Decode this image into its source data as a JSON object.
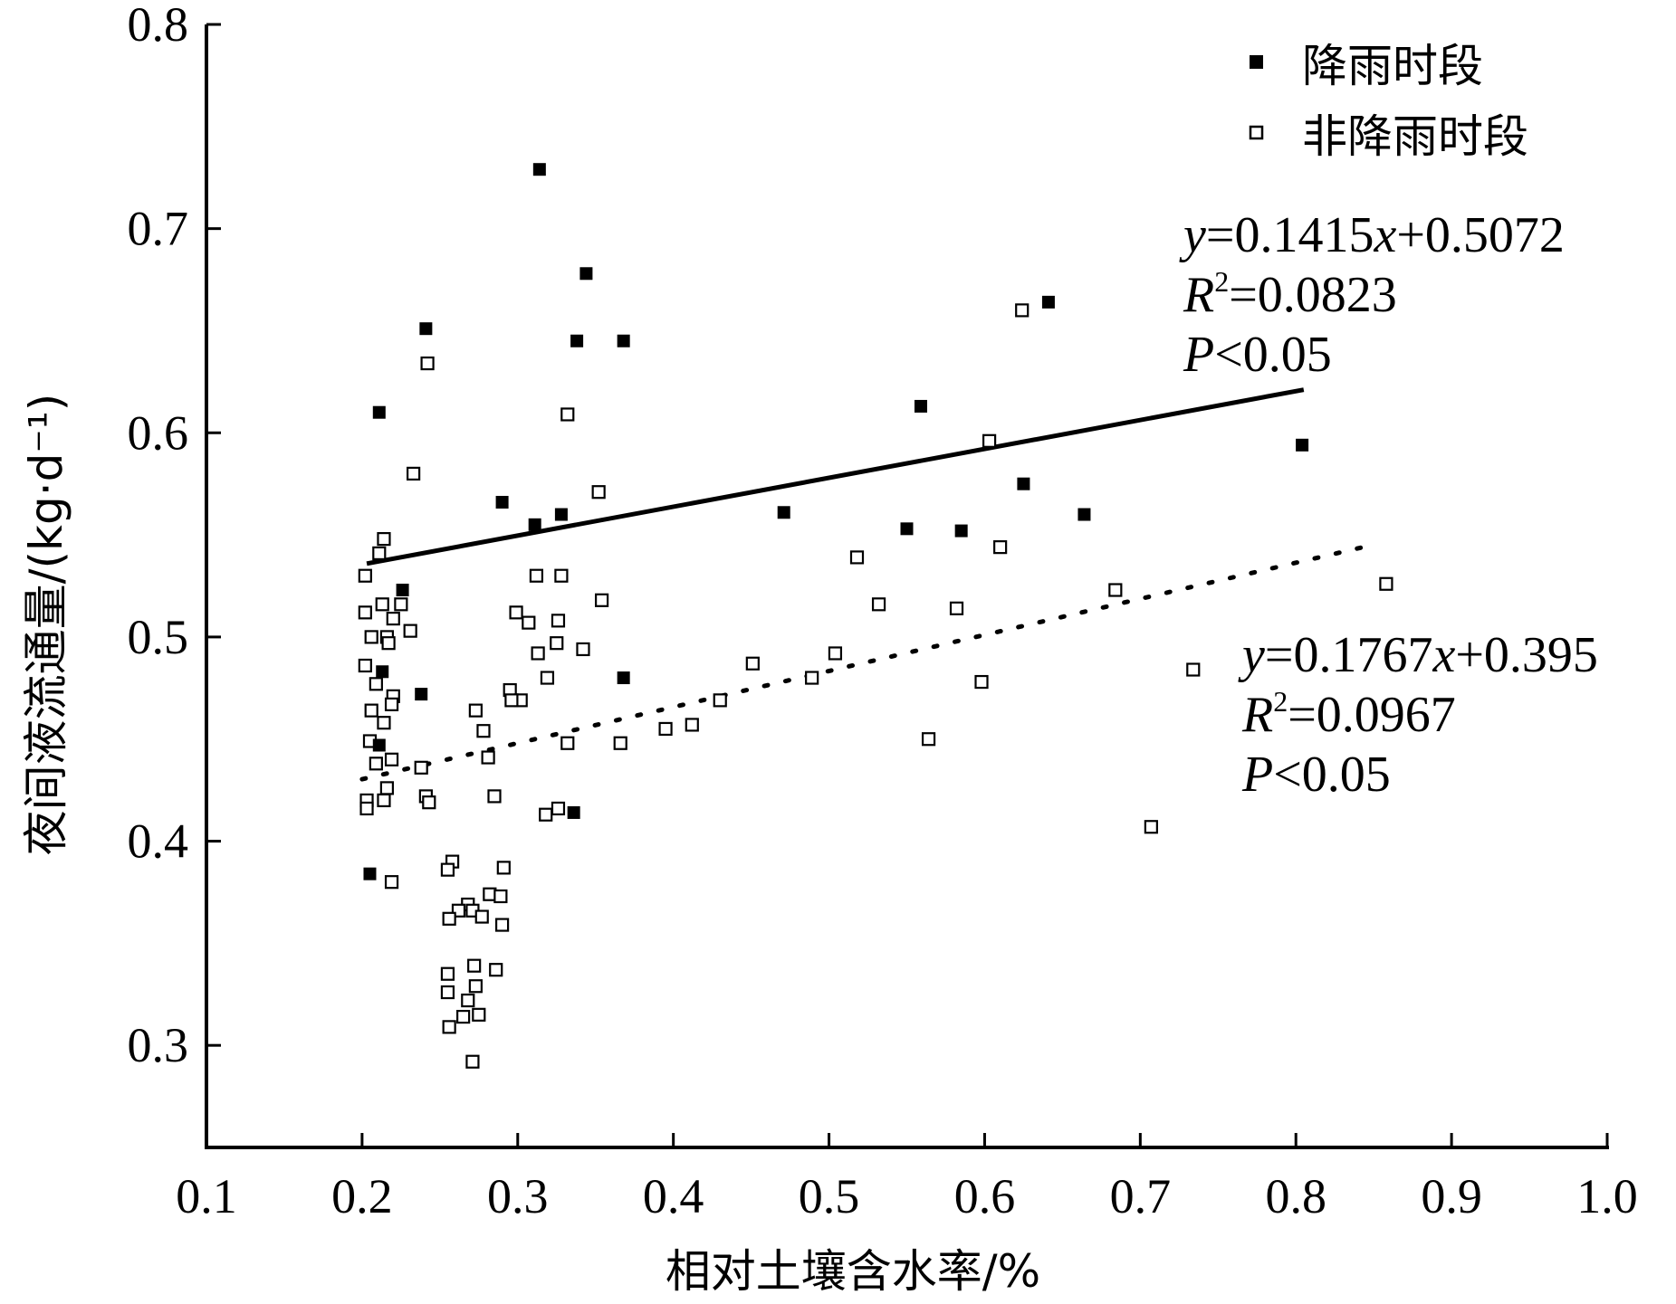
{
  "chart_data": {
    "type": "scatter",
    "xlabel": "相对土壤含水率/%",
    "ylabel": "夜间液流通量/(kg·d⁻¹)",
    "xlim": [
      0.1,
      1.0
    ],
    "ylim": [
      0.25,
      0.8
    ],
    "xticks": [
      "0.1",
      "0.2",
      "0.3",
      "0.4",
      "0.5",
      "0.6",
      "0.7",
      "0.8",
      "0.9",
      "1.0"
    ],
    "yticks": [
      "0.3",
      "0.4",
      "0.5",
      "0.6",
      "0.7",
      "0.8"
    ],
    "legend_position": "top-right",
    "series": [
      {
        "name": "降雨时段",
        "marker": "filled-square",
        "color": "#000000",
        "points": [
          [
            0.314,
            0.729
          ],
          [
            0.344,
            0.678
          ],
          [
            0.241,
            0.651
          ],
          [
            0.338,
            0.645
          ],
          [
            0.368,
            0.645
          ],
          [
            0.211,
            0.61
          ],
          [
            0.641,
            0.664
          ],
          [
            0.559,
            0.613
          ],
          [
            0.804,
            0.594
          ],
          [
            0.625,
            0.575
          ],
          [
            0.29,
            0.566
          ],
          [
            0.471,
            0.561
          ],
          [
            0.664,
            0.56
          ],
          [
            0.328,
            0.56
          ],
          [
            0.311,
            0.555
          ],
          [
            0.55,
            0.553
          ],
          [
            0.585,
            0.552
          ],
          [
            0.226,
            0.523
          ],
          [
            0.213,
            0.483
          ],
          [
            0.238,
            0.472
          ],
          [
            0.368,
            0.48
          ],
          [
            0.211,
            0.447
          ],
          [
            0.336,
            0.414
          ],
          [
            0.205,
            0.384
          ]
        ]
      },
      {
        "name": "非降雨时段",
        "marker": "open-square",
        "color": "#000000",
        "points": [
          [
            0.624,
            0.66
          ],
          [
            0.242,
            0.634
          ],
          [
            0.332,
            0.609
          ],
          [
            0.603,
            0.596
          ],
          [
            0.233,
            0.58
          ],
          [
            0.352,
            0.571
          ],
          [
            0.214,
            0.548
          ],
          [
            0.211,
            0.541
          ],
          [
            0.61,
            0.544
          ],
          [
            0.518,
            0.539
          ],
          [
            0.202,
            0.53
          ],
          [
            0.312,
            0.53
          ],
          [
            0.328,
            0.53
          ],
          [
            0.684,
            0.523
          ],
          [
            0.858,
            0.526
          ],
          [
            0.354,
            0.518
          ],
          [
            0.532,
            0.516
          ],
          [
            0.213,
            0.516
          ],
          [
            0.225,
            0.516
          ],
          [
            0.202,
            0.512
          ],
          [
            0.22,
            0.509
          ],
          [
            0.299,
            0.512
          ],
          [
            0.582,
            0.514
          ],
          [
            0.307,
            0.507
          ],
          [
            0.326,
            0.508
          ],
          [
            0.231,
            0.503
          ],
          [
            0.206,
            0.5
          ],
          [
            0.216,
            0.5
          ],
          [
            0.217,
            0.497
          ],
          [
            0.325,
            0.497
          ],
          [
            0.342,
            0.494
          ],
          [
            0.313,
            0.492
          ],
          [
            0.504,
            0.492
          ],
          [
            0.202,
            0.486
          ],
          [
            0.451,
            0.487
          ],
          [
            0.734,
            0.484
          ],
          [
            0.319,
            0.48
          ],
          [
            0.489,
            0.48
          ],
          [
            0.209,
            0.477
          ],
          [
            0.598,
            0.478
          ],
          [
            0.22,
            0.471
          ],
          [
            0.295,
            0.474
          ],
          [
            0.302,
            0.469
          ],
          [
            0.296,
            0.469
          ],
          [
            0.219,
            0.467
          ],
          [
            0.43,
            0.469
          ],
          [
            0.206,
            0.464
          ],
          [
            0.273,
            0.464
          ],
          [
            0.214,
            0.458
          ],
          [
            0.412,
            0.457
          ],
          [
            0.278,
            0.454
          ],
          [
            0.395,
            0.455
          ],
          [
            0.205,
            0.449
          ],
          [
            0.564,
            0.45
          ],
          [
            0.332,
            0.448
          ],
          [
            0.366,
            0.448
          ],
          [
            0.281,
            0.441
          ],
          [
            0.219,
            0.44
          ],
          [
            0.209,
            0.438
          ],
          [
            0.238,
            0.436
          ],
          [
            0.216,
            0.426
          ],
          [
            0.285,
            0.422
          ],
          [
            0.241,
            0.422
          ],
          [
            0.214,
            0.42
          ],
          [
            0.203,
            0.42
          ],
          [
            0.243,
            0.419
          ],
          [
            0.203,
            0.416
          ],
          [
            0.326,
            0.416
          ],
          [
            0.318,
            0.413
          ],
          [
            0.707,
            0.407
          ],
          [
            0.258,
            0.39
          ],
          [
            0.291,
            0.387
          ],
          [
            0.255,
            0.386
          ],
          [
            0.219,
            0.38
          ],
          [
            0.282,
            0.374
          ],
          [
            0.289,
            0.373
          ],
          [
            0.268,
            0.369
          ],
          [
            0.262,
            0.366
          ],
          [
            0.271,
            0.366
          ],
          [
            0.277,
            0.363
          ],
          [
            0.256,
            0.362
          ],
          [
            0.29,
            0.359
          ],
          [
            0.272,
            0.339
          ],
          [
            0.286,
            0.337
          ],
          [
            0.255,
            0.335
          ],
          [
            0.273,
            0.329
          ],
          [
            0.255,
            0.326
          ],
          [
            0.268,
            0.322
          ],
          [
            0.265,
            0.314
          ],
          [
            0.275,
            0.315
          ],
          [
            0.256,
            0.309
          ],
          [
            0.271,
            0.292
          ]
        ]
      }
    ],
    "fits": [
      {
        "series": "降雨时段",
        "style": "solid",
        "slope": 0.1415,
        "intercept": 0.5072,
        "x_range": [
          0.203,
          0.805
        ],
        "equation_parts": [
          "y",
          "=0.1415",
          "x",
          "+0.5072"
        ],
        "r2_label": "R",
        "r2_exp": "2",
        "r2_value": "=0.0823",
        "p_label": "P",
        "p_value": "<0.05"
      },
      {
        "series": "非降雨时段",
        "style": "dotted",
        "slope": 0.1767,
        "intercept": 0.395,
        "x_range": [
          0.2,
          0.85
        ],
        "equation_parts": [
          "y",
          "=0.1767",
          "x",
          "+0.395"
        ],
        "r2_label": "R",
        "r2_exp": "2",
        "r2_value": "=0.0967",
        "p_label": "P",
        "p_value": "<0.05"
      }
    ]
  }
}
